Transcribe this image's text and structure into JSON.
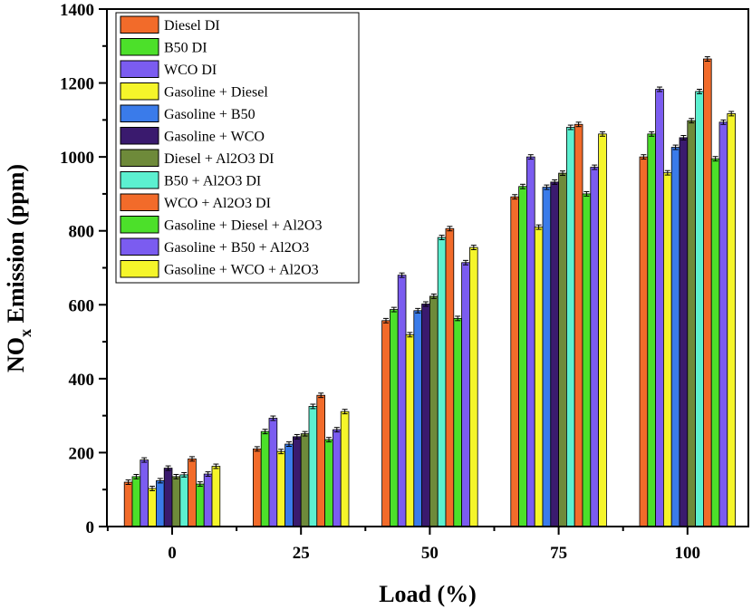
{
  "chart_data": {
    "type": "bar",
    "title": "",
    "xlabel": "Load (%)",
    "ylabel_main": "NO",
    "ylabel_sub": "x",
    "ylabel_rest": " Emission (ppm)",
    "ylim": [
      0,
      1400
    ],
    "yticks": [
      0,
      200,
      400,
      600,
      800,
      1000,
      1200,
      1400
    ],
    "categories": [
      "0",
      "25",
      "50",
      "75",
      "100"
    ],
    "grid": false,
    "legend_position": "top-left",
    "series": [
      {
        "name": "Diesel DI",
        "color": "#F26B2A",
        "values": [
          120,
          210,
          557,
          892,
          1000
        ]
      },
      {
        "name": "B50 DI",
        "color": "#4CE02A",
        "values": [
          135,
          257,
          587,
          920,
          1062
        ]
      },
      {
        "name": "WCO DI",
        "color": "#7B5CF0",
        "values": [
          180,
          293,
          680,
          1000,
          1183
        ]
      },
      {
        "name": "Gasoline + Diesel",
        "color": "#F5F52A",
        "values": [
          103,
          203,
          519,
          810,
          957
        ]
      },
      {
        "name": "Gasoline + B50",
        "color": "#3A7BEA",
        "values": [
          124,
          223,
          584,
          918,
          1026
        ]
      },
      {
        "name": "Gasoline + WCO",
        "color": "#3A1A6E",
        "values": [
          158,
          243,
          602,
          932,
          1052
        ]
      },
      {
        "name": "Diesel + Al2O3 DI",
        "color": "#6E8A3A",
        "values": [
          135,
          251,
          623,
          956,
          1098
        ]
      },
      {
        "name": "B50 + Al2O3 DI",
        "color": "#5CF0D0",
        "values": [
          140,
          325,
          782,
          1080,
          1177
        ]
      },
      {
        "name": "WCO + Al2O3 DI",
        "color": "#F26B2A",
        "values": [
          183,
          355,
          806,
          1088,
          1265
        ]
      },
      {
        "name": "Gasoline + Diesel + Al2O3",
        "color": "#4CE02A",
        "values": [
          115,
          235,
          563,
          900,
          995
        ]
      },
      {
        "name": "Gasoline + B50 + Al2O3",
        "color": "#7B5CF0",
        "values": [
          142,
          262,
          714,
          972,
          1094
        ]
      },
      {
        "name": "Gasoline + WCO + Al2O3",
        "color": "#F5F52A",
        "values": [
          163,
          311,
          755,
          1062,
          1117
        ]
      }
    ],
    "error": 6
  }
}
